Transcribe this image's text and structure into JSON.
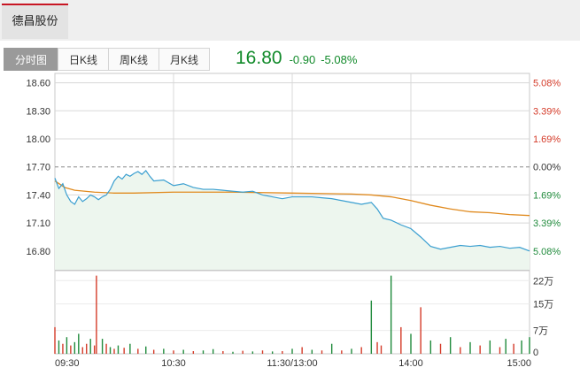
{
  "stock": {
    "name": "德昌股份"
  },
  "tabs": [
    {
      "label": "分时图",
      "active": true
    },
    {
      "label": "日K线",
      "active": false
    },
    {
      "label": "周K线",
      "active": false
    },
    {
      "label": "月K线",
      "active": false
    }
  ],
  "quote": {
    "price": "16.80",
    "change": "-0.90",
    "change_pct": "-5.08%"
  },
  "colors": {
    "up": "#d43a28",
    "down": "#1f8a3b",
    "price_line": "#3a9fd0",
    "avg_line": "#e08a1e",
    "grid": "#d8d8d8",
    "area_fill": "#edf6ee"
  },
  "chart_data": [
    {
      "type": "line",
      "title": "",
      "prev_close": 17.7,
      "ylim": [
        16.6,
        18.7
      ],
      "y_ticks": [
        "18.60",
        "18.30",
        "18.00",
        "17.70",
        "17.40",
        "17.10",
        "16.80"
      ],
      "pct_ticks": [
        "5.08%",
        "3.39%",
        "1.69%",
        "0.00%",
        "1.69%",
        "3.39%",
        "5.08%"
      ],
      "x_ticks": [
        "09:30",
        "10:30",
        "11:30/13:00",
        "14:00",
        "15:00"
      ],
      "x_range_minutes": [
        0,
        240
      ],
      "grid": true,
      "series": [
        {
          "x": [
            0,
            2,
            4,
            6,
            8,
            10,
            12,
            14,
            16,
            18,
            20,
            22,
            24,
            26,
            28,
            30,
            32,
            34,
            36,
            38,
            40,
            42,
            44,
            46,
            48,
            50,
            55,
            60,
            65,
            70,
            75,
            80,
            85,
            90,
            95,
            100,
            105,
            110,
            115,
            120,
            125,
            130,
            135,
            140,
            145,
            150,
            155,
            160,
            163,
            166,
            170,
            175,
            180,
            185,
            190,
            195,
            200,
            205,
            210,
            215,
            220,
            225,
            230,
            235,
            240
          ],
          "values": [
            17.58,
            17.47,
            17.52,
            17.4,
            17.33,
            17.3,
            17.38,
            17.33,
            17.36,
            17.4,
            17.38,
            17.35,
            17.38,
            17.4,
            17.46,
            17.55,
            17.6,
            17.57,
            17.62,
            17.6,
            17.63,
            17.65,
            17.62,
            17.66,
            17.6,
            17.55,
            17.56,
            17.5,
            17.52,
            17.48,
            17.46,
            17.46,
            17.45,
            17.44,
            17.43,
            17.44,
            17.4,
            17.38,
            17.36,
            17.38,
            17.38,
            17.38,
            17.37,
            17.36,
            17.34,
            17.32,
            17.3,
            17.32,
            17.25,
            17.15,
            17.13,
            17.08,
            17.04,
            16.95,
            16.85,
            16.82,
            16.84,
            16.86,
            16.85,
            16.86,
            16.84,
            16.85,
            16.83,
            16.84,
            16.8
          ]
        },
        {
          "x": [
            0,
            5,
            10,
            20,
            30,
            40,
            60,
            90,
            120,
            150,
            160,
            170,
            180,
            190,
            200,
            210,
            220,
            230,
            240
          ],
          "values": [
            17.55,
            17.48,
            17.45,
            17.43,
            17.42,
            17.42,
            17.43,
            17.43,
            17.42,
            17.41,
            17.4,
            17.38,
            17.34,
            17.29,
            17.25,
            17.22,
            17.21,
            17.19,
            17.18
          ]
        }
      ]
    },
    {
      "type": "bar",
      "title": "",
      "ylim": [
        0,
        250000
      ],
      "y_ticks": [
        "22万",
        "15万",
        "7万",
        "0"
      ],
      "y_tick_values": [
        220000,
        150000,
        70000,
        0
      ],
      "x_range_minutes": [
        0,
        240
      ],
      "series": [
        {
          "x": [
            0,
            2,
            4,
            6,
            8,
            10,
            12,
            14,
            16,
            18,
            20,
            21,
            24,
            26,
            28,
            30,
            32,
            35,
            38,
            42,
            46,
            50,
            55,
            60,
            65,
            70,
            75,
            80,
            85,
            90,
            95,
            100,
            105,
            110,
            115,
            120,
            125,
            130,
            135,
            140,
            145,
            150,
            155,
            160,
            163,
            165,
            170,
            175,
            180,
            185,
            190,
            195,
            200,
            205,
            210,
            215,
            220,
            225,
            228,
            232,
            236,
            240
          ],
          "values": [
            80000,
            40000,
            30000,
            50000,
            25000,
            35000,
            60000,
            20000,
            30000,
            45000,
            25000,
            235000,
            45000,
            30000,
            20000,
            15000,
            25000,
            18000,
            30000,
            15000,
            22000,
            12000,
            15000,
            10000,
            12000,
            8000,
            10000,
            14000,
            8000,
            6000,
            9000,
            7000,
            10000,
            7000,
            8000,
            15000,
            20000,
            12000,
            10000,
            30000,
            10000,
            15000,
            20000,
            160000,
            35000,
            25000,
            235000,
            80000,
            60000,
            140000,
            40000,
            30000,
            50000,
            20000,
            35000,
            25000,
            40000,
            20000,
            45000,
            30000,
            40000,
            50000
          ],
          "direction": [
            "up",
            "down",
            "up",
            "down",
            "up",
            "down",
            "down",
            "up",
            "up",
            "down",
            "up",
            "up",
            "down",
            "up",
            "down",
            "up",
            "down",
            "up",
            "down",
            "up",
            "down",
            "up",
            "down",
            "up",
            "down",
            "up",
            "down",
            "down",
            "up",
            "down",
            "up",
            "down",
            "up",
            "down",
            "up",
            "down",
            "up",
            "down",
            "up",
            "down",
            "up",
            "down",
            "up",
            "down",
            "up",
            "up",
            "down",
            "up",
            "down",
            "up",
            "down",
            "up",
            "down",
            "up",
            "down",
            "up",
            "down",
            "up",
            "down",
            "up",
            "down",
            "down"
          ]
        }
      ]
    }
  ]
}
